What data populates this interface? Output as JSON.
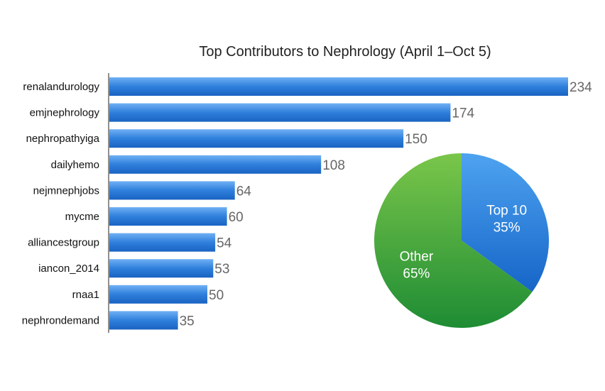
{
  "chart_data": [
    {
      "type": "bar",
      "orientation": "horizontal",
      "title": "Top Contributors to Nephrology (April 1–Oct 5)",
      "categories": [
        "renalandurology",
        "emjnephrology",
        "nephropathyiga",
        "dailyhemo",
        "nejmnephjobs",
        "mycme",
        "alliancestgroup",
        "iancon_2014",
        "rnaa1",
        "nephrondemand"
      ],
      "values": [
        234,
        174,
        150,
        108,
        64,
        60,
        54,
        53,
        50,
        35
      ],
      "xlim": [
        0,
        234
      ],
      "grid": false,
      "color": "#2f7fdc"
    },
    {
      "type": "pie",
      "slices": [
        {
          "name": "Top 10",
          "percent_label": "35%",
          "value": 35,
          "color": "#2f7fdc"
        },
        {
          "name": "Other",
          "percent_label": "65%",
          "value": 65,
          "color": "#2e9a3a"
        }
      ]
    }
  ]
}
